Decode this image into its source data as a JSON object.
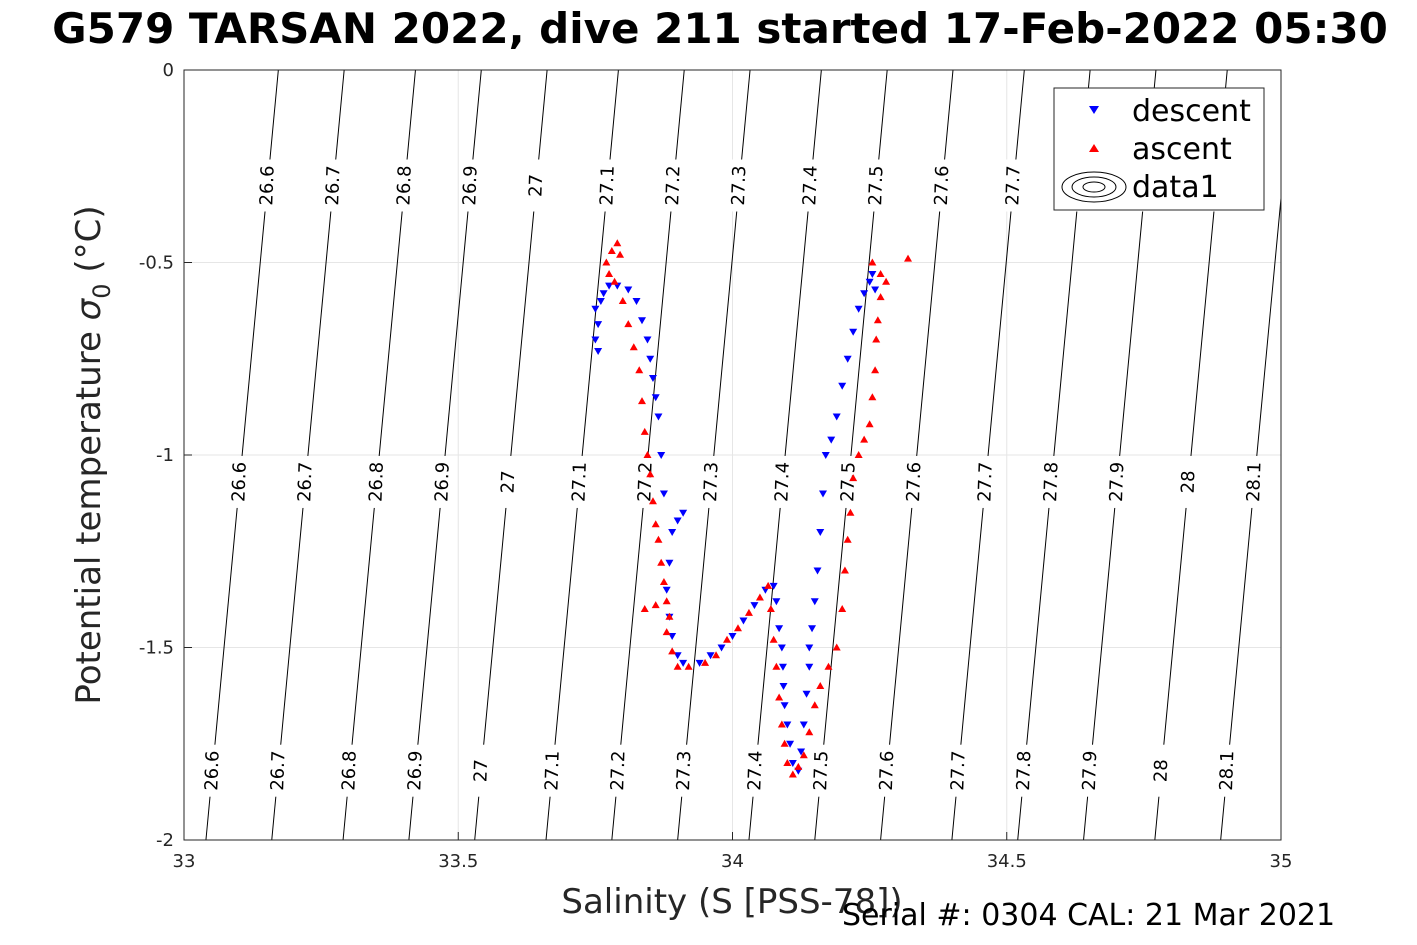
{
  "title": "G579 TARSAN 2022, dive 211 started 17-Feb-2022 05:30",
  "footer": "Serial #: 0304  CAL: 21 Mar 2021",
  "chart_data": {
    "type": "scatter",
    "title": "G579 TARSAN 2022, dive 211 started 17-Feb-2022 05:30",
    "xlabel": "Salinity (S [PSS-78])",
    "ylabel_main": "Potential temperature ",
    "ylabel_symbol": "σ",
    "ylabel_sub": "0",
    "ylabel_unit": " (°C)",
    "xlim": [
      33,
      35
    ],
    "ylim": [
      -2,
      0
    ],
    "xticks": [
      33,
      33.5,
      34,
      34.5,
      35
    ],
    "xtick_labels": [
      "33",
      "33.5",
      "34",
      "34.5",
      "35"
    ],
    "yticks": [
      0,
      -0.5,
      -1,
      -1.5,
      -2
    ],
    "ytick_labels": [
      "0",
      "-0.5",
      "-1",
      "-1.5",
      "-2"
    ],
    "grid": true,
    "legend": {
      "placement": "top-right",
      "entries": [
        "descent",
        "ascent",
        "data1"
      ]
    },
    "density_contours": {
      "levels": [
        "26.6",
        "26.7",
        "26.8",
        "26.9",
        "27",
        "27.1",
        "27.2",
        "27.3",
        "27.4",
        "27.5",
        "27.6",
        "27.7",
        "27.8",
        "27.9",
        "28",
        "28.1"
      ],
      "s_at_minus2": [
        33.04,
        33.16,
        33.29,
        33.41,
        33.53,
        33.66,
        33.78,
        33.9,
        34.03,
        34.15,
        34.27,
        34.4,
        34.52,
        34.64,
        34.77,
        34.89
      ],
      "slope_s_per_degC": 0.066,
      "label_rows_temp": [
        -0.3,
        -1.07,
        -1.82
      ]
    },
    "series": [
      {
        "name": "descent",
        "color": "#0000ff",
        "marker": "triangle-down",
        "points": [
          [
            33.75,
            -0.62
          ],
          [
            33.755,
            -0.66
          ],
          [
            33.75,
            -0.7
          ],
          [
            33.755,
            -0.73
          ],
          [
            33.76,
            -0.6
          ],
          [
            33.765,
            -0.58
          ],
          [
            33.775,
            -0.56
          ],
          [
            33.79,
            -0.56
          ],
          [
            33.81,
            -0.57
          ],
          [
            33.825,
            -0.6
          ],
          [
            33.835,
            -0.65
          ],
          [
            33.845,
            -0.7
          ],
          [
            33.85,
            -0.75
          ],
          [
            33.855,
            -0.8
          ],
          [
            33.86,
            -0.85
          ],
          [
            33.865,
            -0.9
          ],
          [
            33.87,
            -1.0
          ],
          [
            33.875,
            -1.1
          ],
          [
            33.89,
            -1.2
          ],
          [
            33.9,
            -1.17
          ],
          [
            33.91,
            -1.15
          ],
          [
            33.885,
            -1.28
          ],
          [
            33.88,
            -1.35
          ],
          [
            33.885,
            -1.42
          ],
          [
            33.89,
            -1.47
          ],
          [
            33.9,
            -1.52
          ],
          [
            33.91,
            -1.54
          ],
          [
            33.94,
            -1.54
          ],
          [
            33.96,
            -1.52
          ],
          [
            33.98,
            -1.5
          ],
          [
            34.0,
            -1.47
          ],
          [
            34.02,
            -1.43
          ],
          [
            34.04,
            -1.39
          ],
          [
            34.06,
            -1.35
          ],
          [
            34.075,
            -1.34
          ],
          [
            34.08,
            -1.38
          ],
          [
            34.085,
            -1.45
          ],
          [
            34.09,
            -1.5
          ],
          [
            34.092,
            -1.55
          ],
          [
            34.093,
            -1.6
          ],
          [
            34.095,
            -1.65
          ],
          [
            34.1,
            -1.7
          ],
          [
            34.105,
            -1.75
          ],
          [
            34.11,
            -1.8
          ],
          [
            34.12,
            -1.82
          ],
          [
            34.125,
            -1.77
          ],
          [
            34.13,
            -1.7
          ],
          [
            34.135,
            -1.62
          ],
          [
            34.14,
            -1.55
          ],
          [
            34.14,
            -1.5
          ],
          [
            34.145,
            -1.45
          ],
          [
            34.15,
            -1.38
          ],
          [
            34.155,
            -1.3
          ],
          [
            34.16,
            -1.2
          ],
          [
            34.165,
            -1.1
          ],
          [
            34.17,
            -1.0
          ],
          [
            34.18,
            -0.96
          ],
          [
            34.19,
            -0.9
          ],
          [
            34.2,
            -0.82
          ],
          [
            34.21,
            -0.75
          ],
          [
            34.22,
            -0.68
          ],
          [
            34.23,
            -0.62
          ],
          [
            34.24,
            -0.58
          ],
          [
            34.25,
            -0.55
          ],
          [
            34.255,
            -0.53
          ],
          [
            34.26,
            -0.57
          ]
        ]
      },
      {
        "name": "ascent",
        "color": "#ff0000",
        "marker": "triangle-up",
        "points": [
          [
            33.77,
            -0.5
          ],
          [
            33.775,
            -0.53
          ],
          [
            33.78,
            -0.47
          ],
          [
            33.79,
            -0.45
          ],
          [
            33.795,
            -0.48
          ],
          [
            33.785,
            -0.55
          ],
          [
            33.8,
            -0.6
          ],
          [
            33.81,
            -0.66
          ],
          [
            33.82,
            -0.72
          ],
          [
            33.83,
            -0.78
          ],
          [
            33.835,
            -0.86
          ],
          [
            33.84,
            -0.94
          ],
          [
            33.845,
            -1.0
          ],
          [
            33.85,
            -1.05
          ],
          [
            33.855,
            -1.12
          ],
          [
            33.86,
            -1.18
          ],
          [
            33.865,
            -1.22
          ],
          [
            33.87,
            -1.28
          ],
          [
            33.875,
            -1.33
          ],
          [
            33.88,
            -1.38
          ],
          [
            33.885,
            -1.42
          ],
          [
            33.84,
            -1.4
          ],
          [
            33.86,
            -1.39
          ],
          [
            33.88,
            -1.46
          ],
          [
            33.89,
            -1.51
          ],
          [
            33.9,
            -1.55
          ],
          [
            33.92,
            -1.55
          ],
          [
            33.95,
            -1.54
          ],
          [
            33.97,
            -1.52
          ],
          [
            33.99,
            -1.48
          ],
          [
            34.01,
            -1.45
          ],
          [
            34.03,
            -1.41
          ],
          [
            34.05,
            -1.37
          ],
          [
            34.065,
            -1.34
          ],
          [
            34.07,
            -1.4
          ],
          [
            34.075,
            -1.48
          ],
          [
            34.08,
            -1.55
          ],
          [
            34.085,
            -1.63
          ],
          [
            34.09,
            -1.7
          ],
          [
            34.095,
            -1.75
          ],
          [
            34.1,
            -1.8
          ],
          [
            34.11,
            -1.83
          ],
          [
            34.12,
            -1.81
          ],
          [
            34.13,
            -1.78
          ],
          [
            34.14,
            -1.72
          ],
          [
            34.15,
            -1.65
          ],
          [
            34.16,
            -1.6
          ],
          [
            34.175,
            -1.55
          ],
          [
            34.19,
            -1.5
          ],
          [
            34.2,
            -1.4
          ],
          [
            34.205,
            -1.3
          ],
          [
            34.21,
            -1.22
          ],
          [
            34.215,
            -1.15
          ],
          [
            34.22,
            -1.06
          ],
          [
            34.23,
            -1.0
          ],
          [
            34.24,
            -0.96
          ],
          [
            34.25,
            -0.92
          ],
          [
            34.255,
            -0.85
          ],
          [
            34.26,
            -0.78
          ],
          [
            34.262,
            -0.7
          ],
          [
            34.265,
            -0.65
          ],
          [
            34.27,
            -0.59
          ],
          [
            34.28,
            -0.55
          ],
          [
            34.27,
            -0.53
          ],
          [
            34.255,
            -0.5
          ],
          [
            34.32,
            -0.49
          ]
        ]
      }
    ]
  }
}
